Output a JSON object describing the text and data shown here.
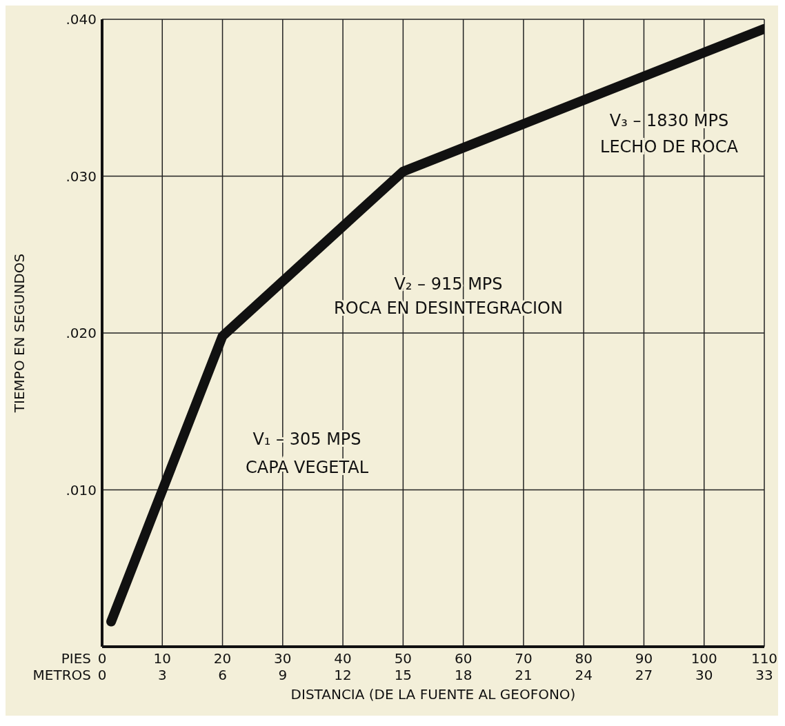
{
  "chart_data": {
    "type": "line",
    "xlabel": "PIES",
    "x2label": "METROS",
    "ylabel": "TIEMPO EN SEGUNDOS",
    "x": [
      1.5,
      20,
      50,
      110
    ],
    "series": [
      {
        "color": "#111111",
        "values": [
          0.0016,
          0.0198,
          0.0303,
          0.0394
        ]
      }
    ],
    "xlim": [
      0,
      110
    ],
    "xticks": [
      0,
      10,
      20,
      30,
      40,
      50,
      60,
      70,
      80,
      90,
      100,
      110
    ],
    "x2lim": [
      0,
      33
    ],
    "x2ticks": [
      0,
      3,
      6,
      9,
      12,
      15,
      18,
      21,
      24,
      27,
      30,
      33
    ],
    "ylim": [
      0,
      0.04
    ],
    "yticks": [
      {
        "value": 0.01,
        "label": ".010"
      },
      {
        "value": 0.02,
        "label": ".020"
      },
      {
        "value": 0.03,
        "label": ".030"
      },
      {
        "value": 0.04,
        "label": ".040"
      }
    ],
    "grid": true,
    "legend": false,
    "marker": "none",
    "line_style": "solid",
    "annotations": [
      "V₁ – 305 MPS",
      "CAPA VEGETAL",
      "V₂ – 915 MPS",
      "ROCA EN DESINTEGRACION",
      "V₃ – 1830 MPS",
      "LECHO DE ROCA",
      "DISTANCIA (DE LA FUENTE AL GEOFONO)"
    ]
  }
}
